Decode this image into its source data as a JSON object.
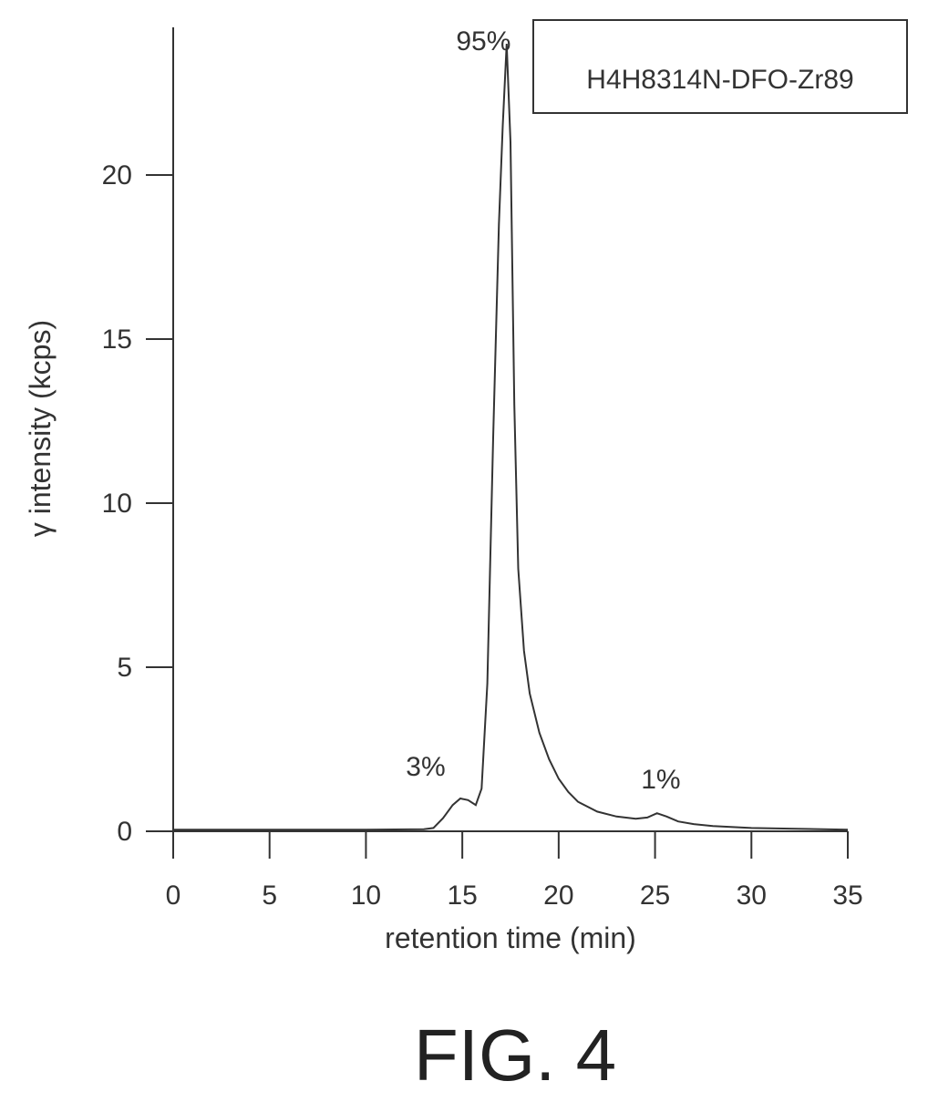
{
  "chart_data": {
    "type": "line",
    "title": "",
    "xlabel": "retention time (min)",
    "ylabel": "γ intensity (kcps)",
    "xlim": [
      0,
      35
    ],
    "ylim": [
      0,
      24.5
    ],
    "xticks": [
      0,
      5,
      10,
      15,
      20,
      25,
      30,
      35
    ],
    "yticks": [
      0,
      5,
      10,
      15,
      20
    ],
    "grid": false,
    "legend_position": "top-right",
    "series": [
      {
        "name": "H4H8314N-DFO-Zr89",
        "color": "#333333",
        "x": [
          0,
          5,
          10,
          13.0,
          13.5,
          14.0,
          14.5,
          14.9,
          15.3,
          15.7,
          16.0,
          16.3,
          16.6,
          16.9,
          17.1,
          17.3,
          17.5,
          17.7,
          17.9,
          18.2,
          18.5,
          19.0,
          19.5,
          20.0,
          20.5,
          21.0,
          22.0,
          23.0,
          24.0,
          24.6,
          25.1,
          25.6,
          26.2,
          27.0,
          28.0,
          30.0,
          32.0,
          35.0
        ],
        "y": [
          0.05,
          0.05,
          0.05,
          0.06,
          0.1,
          0.4,
          0.8,
          1.0,
          0.95,
          0.8,
          1.3,
          4.5,
          12.0,
          18.5,
          21.5,
          24.0,
          21.0,
          13.0,
          8.0,
          5.5,
          4.2,
          3.0,
          2.2,
          1.6,
          1.2,
          0.9,
          0.6,
          0.45,
          0.38,
          0.42,
          0.55,
          0.45,
          0.3,
          0.22,
          0.16,
          0.1,
          0.08,
          0.05
        ]
      }
    ],
    "annotations": [
      {
        "text": "95%",
        "x": 16.1,
        "y": 23.8
      },
      {
        "text": "3%",
        "x": 13.1,
        "y": 1.7
      },
      {
        "text": "1%",
        "x": 25.3,
        "y": 1.3
      }
    ]
  },
  "figure_caption": "FIG. 4"
}
